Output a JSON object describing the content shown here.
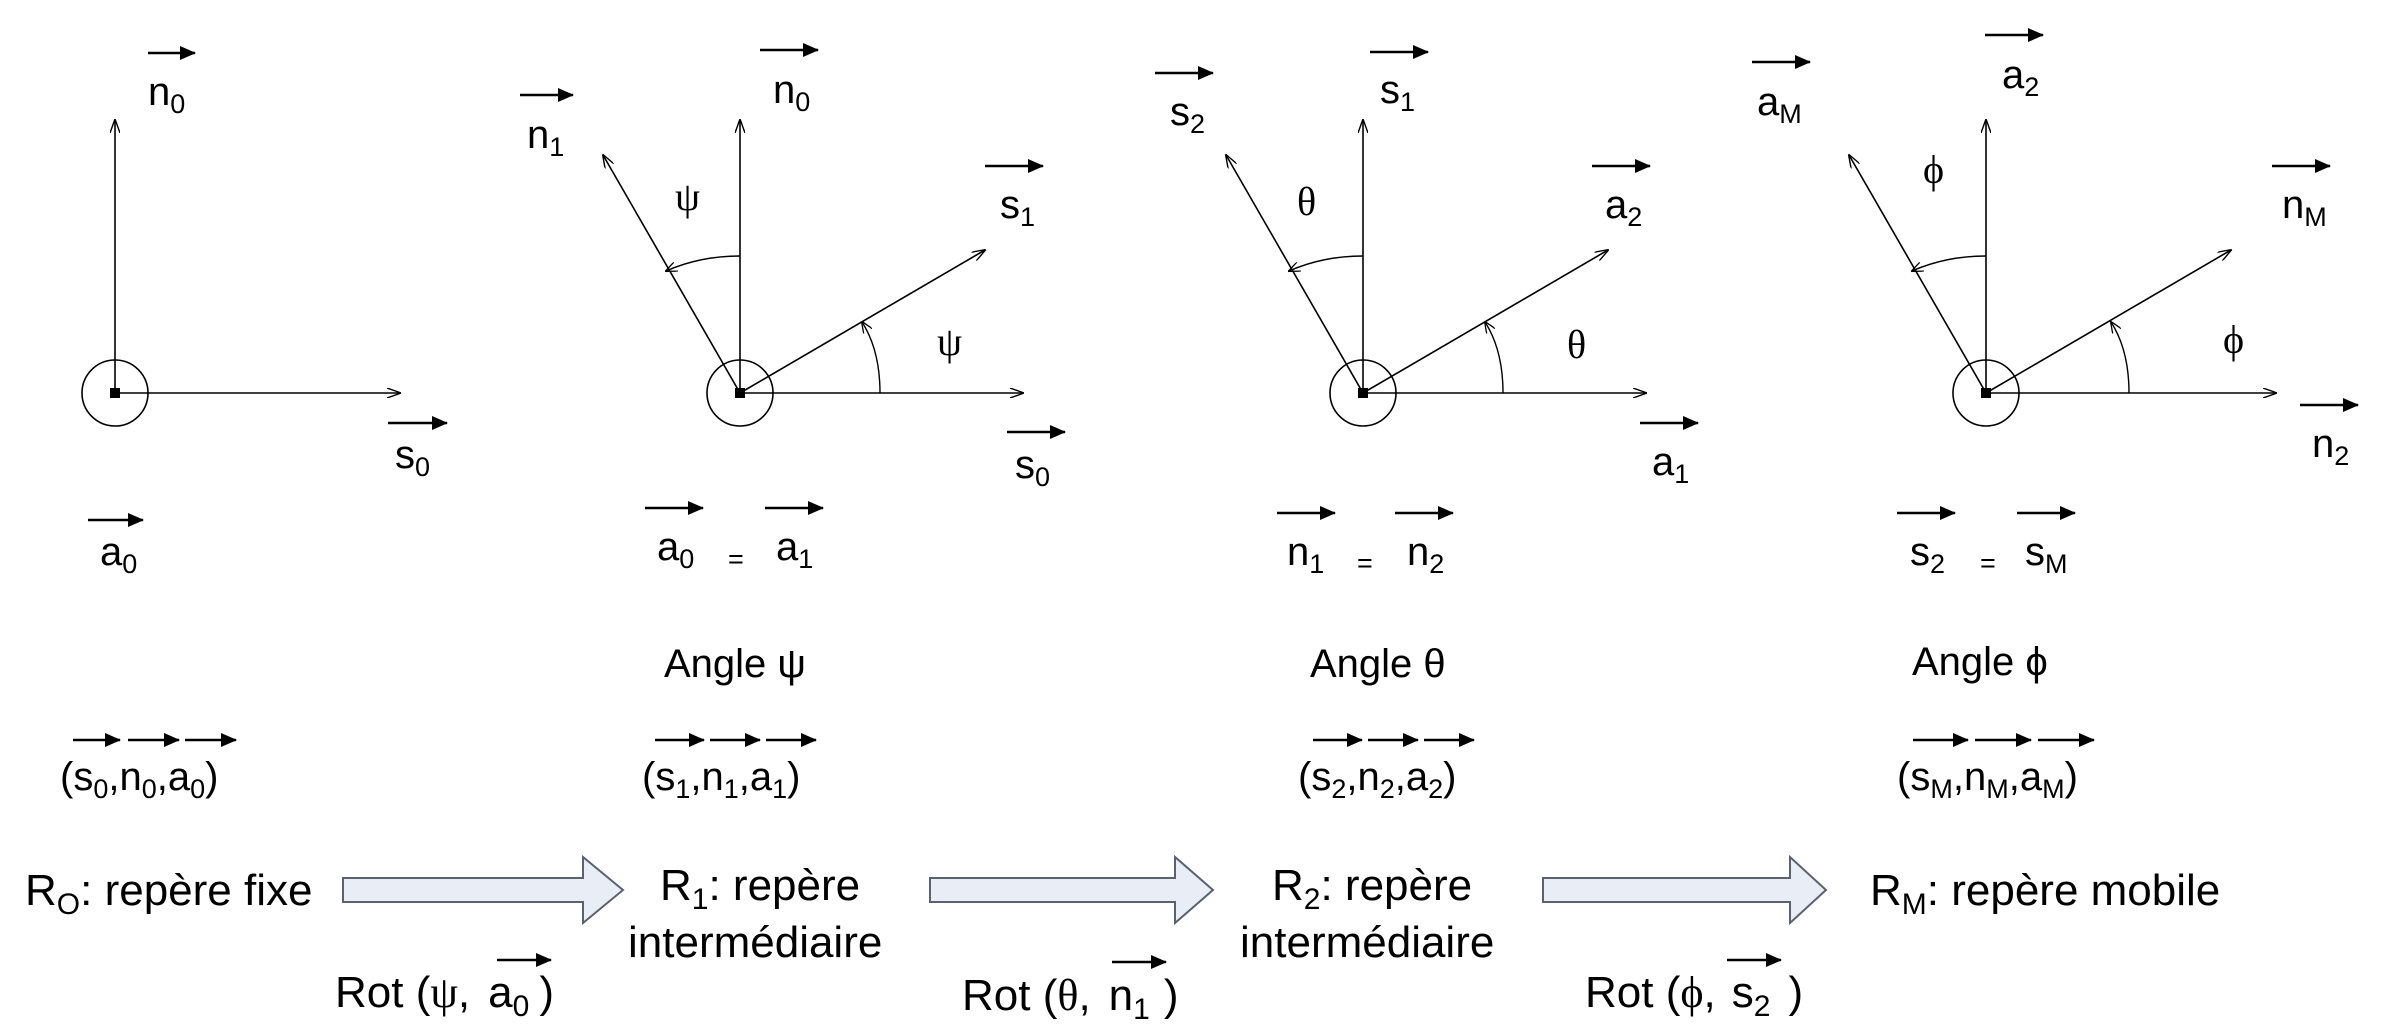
{
  "frames": [
    {
      "name": "R0",
      "axes": [
        {
          "letter": "n",
          "sub": "0",
          "dir": "up"
        },
        {
          "letter": "s",
          "sub": "0",
          "dir": "right"
        }
      ],
      "out_vector": {
        "letter": "a",
        "sub": "0"
      },
      "equality": null,
      "angle_label": "",
      "triplet": {
        "open": "(",
        "items": [
          {
            "letter": "s",
            "sub": "0"
          },
          {
            "letter": "n",
            "sub": "0"
          },
          {
            "letter": "a",
            "sub": "0"
          }
        ],
        "close": ")"
      },
      "ref": {
        "letter": "R",
        "sub": "O",
        "line1": ": repère fixe",
        "line2": ""
      }
    },
    {
      "name": "R1",
      "axes": [
        {
          "letter": "n",
          "sub": "1",
          "dir": "rotated-up"
        },
        {
          "letter": "n",
          "sub": "0",
          "dir": "up"
        },
        {
          "letter": "s",
          "sub": "1",
          "dir": "rotated-right"
        },
        {
          "letter": "s",
          "sub": "0",
          "dir": "right"
        }
      ],
      "angle_symbol": "ψ",
      "equality": {
        "left": {
          "letter": "a",
          "sub": "0"
        },
        "eq": "=",
        "right": {
          "letter": "a",
          "sub": "1"
        }
      },
      "angle_label": "Angle ψ",
      "triplet": {
        "open": "(",
        "items": [
          {
            "letter": "s",
            "sub": "1"
          },
          {
            "letter": "n",
            "sub": "1"
          },
          {
            "letter": "a",
            "sub": "1"
          }
        ],
        "close": ")"
      },
      "ref": {
        "letter": "R",
        "sub": "1",
        "line1": ": repère",
        "line2": "intermédiaire"
      }
    },
    {
      "name": "R2",
      "axes": [
        {
          "letter": "s",
          "sub": "2",
          "dir": "rotated-up"
        },
        {
          "letter": "s",
          "sub": "1",
          "dir": "up"
        },
        {
          "letter": "a",
          "sub": "2",
          "dir": "rotated-right"
        },
        {
          "letter": "a",
          "sub": "1",
          "dir": "right"
        }
      ],
      "angle_symbol": "θ",
      "equality": {
        "left": {
          "letter": "n",
          "sub": "1"
        },
        "eq": "=",
        "right": {
          "letter": "n",
          "sub": "2"
        }
      },
      "angle_label": "Angle θ",
      "triplet": {
        "open": "(",
        "items": [
          {
            "letter": "s",
            "sub": "2"
          },
          {
            "letter": "n",
            "sub": "2"
          },
          {
            "letter": "a",
            "sub": "2"
          }
        ],
        "close": ")"
      },
      "ref": {
        "letter": "R",
        "sub": "2",
        "line1": ": repère",
        "line2": "intermédiaire"
      }
    },
    {
      "name": "RM",
      "axes": [
        {
          "letter": "a",
          "sub": "M",
          "dir": "rotated-up"
        },
        {
          "letter": "a",
          "sub": "2",
          "dir": "up"
        },
        {
          "letter": "n",
          "sub": "M",
          "dir": "rotated-right"
        },
        {
          "letter": "n",
          "sub": "2",
          "dir": "right"
        }
      ],
      "angle_symbol": "ϕ",
      "equality": {
        "left": {
          "letter": "s",
          "sub": "2"
        },
        "eq": "=",
        "right": {
          "letter": "s",
          "sub": "M"
        }
      },
      "angle_label": "Angle ϕ",
      "triplet": {
        "open": "(",
        "items": [
          {
            "letter": "s",
            "sub": "M"
          },
          {
            "letter": "n",
            "sub": "M"
          },
          {
            "letter": "a",
            "sub": "M"
          }
        ],
        "close": ")"
      },
      "ref": {
        "letter": "R",
        "sub": "M",
        "line1": ": repère mobile",
        "line2": ""
      }
    }
  ],
  "rotations": [
    {
      "prefix": "Rot (",
      "angle": "ψ",
      "comma": ",",
      "vec": {
        "letter": "a",
        "sub": "0"
      },
      "suffix": ")"
    },
    {
      "prefix": "Rot (",
      "angle": "θ",
      "comma": ",",
      "vec": {
        "letter": "n",
        "sub": "1"
      },
      "suffix": ")"
    },
    {
      "prefix": "Rot (",
      "angle": "ϕ",
      "comma": ",",
      "vec": {
        "letter": "s",
        "sub": "2"
      },
      "suffix": ")"
    }
  ],
  "colors": {
    "arrow_fill": "#e8edf6",
    "arrow_stroke": "#5a6272",
    "ink": "#000000"
  }
}
